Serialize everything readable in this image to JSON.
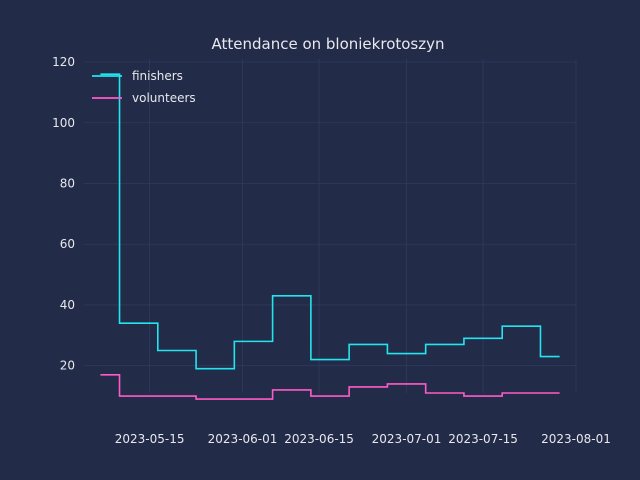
{
  "chart_data": {
    "type": "line",
    "drawstyle": "steps",
    "title": "Attendance on bloniekrotoszyn",
    "xlabel": "",
    "ylabel": "",
    "x": [
      "2023-05-06",
      "2023-05-13",
      "2023-05-20",
      "2023-05-27",
      "2023-06-03",
      "2023-06-10",
      "2023-06-17",
      "2023-06-24",
      "2023-07-01",
      "2023-07-08",
      "2023-07-15",
      "2023-07-22",
      "2023-07-29"
    ],
    "series": [
      {
        "name": "finishers",
        "color": "#22e5f0",
        "values": [
          116,
          34,
          25,
          19,
          28,
          43,
          22,
          27,
          24,
          27,
          29,
          33,
          23
        ]
      },
      {
        "name": "volunteers",
        "color": "#ff5ac8",
        "values": [
          17,
          10,
          10,
          9,
          9,
          12,
          10,
          13,
          14,
          11,
          10,
          11,
          11
        ]
      }
    ],
    "xlim": [
      "2023-05-03",
      "2023-08-01"
    ],
    "ylim": [
      11,
      121
    ],
    "x_ticks": [
      "2023-05-15",
      "2023-06-01",
      "2023-06-15",
      "2023-07-01",
      "2023-07-15",
      "2023-08-01"
    ],
    "y_ticks": [
      20,
      40,
      60,
      80,
      100,
      120
    ],
    "grid": true,
    "legend_position": "top-left"
  }
}
